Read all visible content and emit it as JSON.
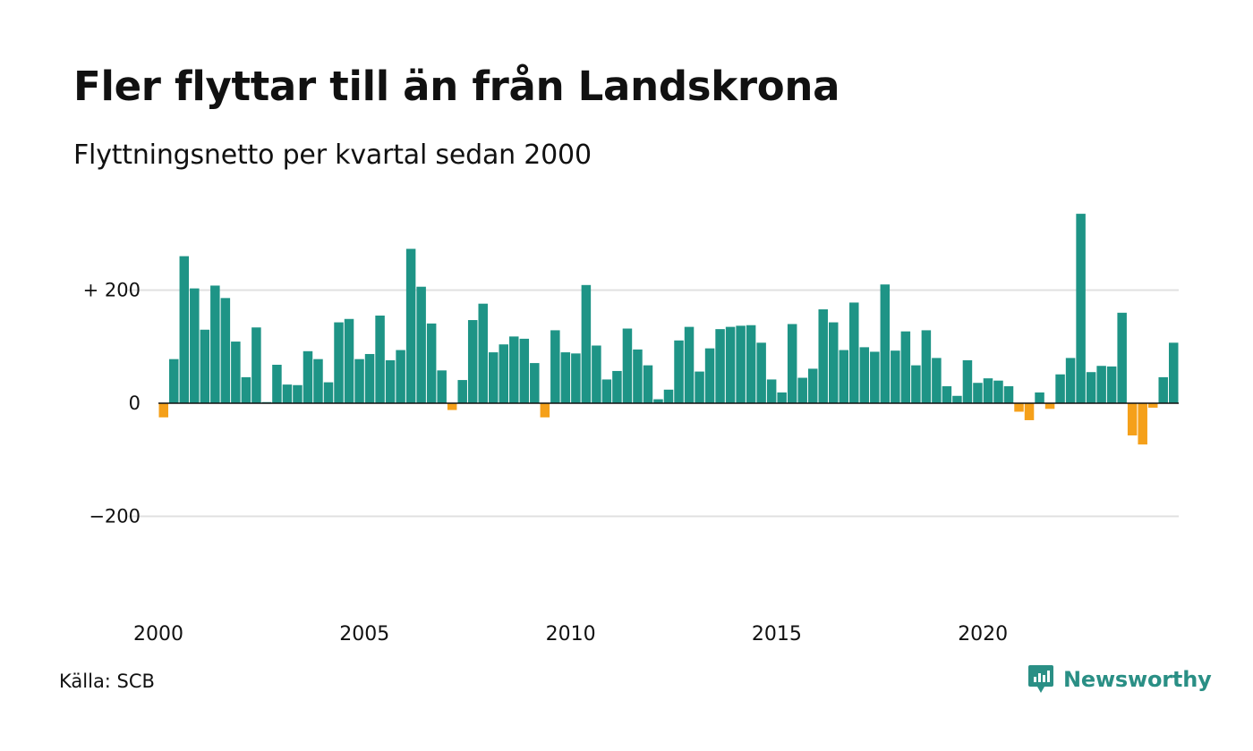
{
  "title": "Fler flyttar till än från Landskrona",
  "subtitle": "Flyttningsnetto per kvartal sedan 2000",
  "source": "Källa: SCB",
  "brand": "Newsworthy",
  "icons": {
    "brand_logo": "newsworthy-logo-icon"
  },
  "colors": {
    "positive": "#1e9486",
    "negative": "#f5a01a",
    "grid": "#e0e0e0",
    "zero_line": "#111111",
    "brand": "#2a8f85"
  },
  "chart_data": {
    "type": "bar",
    "title": "Fler flyttar till än från Landskrona",
    "subtitle": "Flyttningsnetto per kvartal sedan 2000",
    "x_start": 2000,
    "x_step": 0.25,
    "xlim": [
      2000,
      2025
    ],
    "ylim": [
      -370,
      340
    ],
    "grid": true,
    "y_ticks": [
      {
        "value": 200,
        "label": "+ 200"
      },
      {
        "value": 0,
        "label": "0"
      },
      {
        "value": -200,
        "label": "−200"
      }
    ],
    "x_ticks": [
      "2000",
      "2005",
      "2010",
      "2015",
      "2020"
    ],
    "values": [
      -25,
      78,
      260,
      203,
      130,
      208,
      186,
      109,
      46,
      134,
      2,
      68,
      33,
      32,
      92,
      78,
      37,
      143,
      149,
      78,
      87,
      155,
      76,
      94,
      273,
      206,
      141,
      58,
      -12,
      41,
      147,
      176,
      90,
      104,
      118,
      114,
      71,
      -25,
      129,
      90,
      88,
      209,
      102,
      42,
      57,
      132,
      95,
      67,
      7,
      24,
      111,
      135,
      56,
      97,
      131,
      135,
      137,
      138,
      107,
      42,
      19,
      140,
      45,
      61,
      166,
      143,
      94,
      178,
      99,
      91,
      210,
      93,
      127,
      67,
      129,
      80,
      30,
      13,
      76,
      36,
      44,
      40,
      30,
      -15,
      -30,
      19,
      -10,
      51,
      80,
      335,
      55,
      66,
      65,
      160,
      -57,
      -73,
      -8,
      46,
      107
    ]
  }
}
